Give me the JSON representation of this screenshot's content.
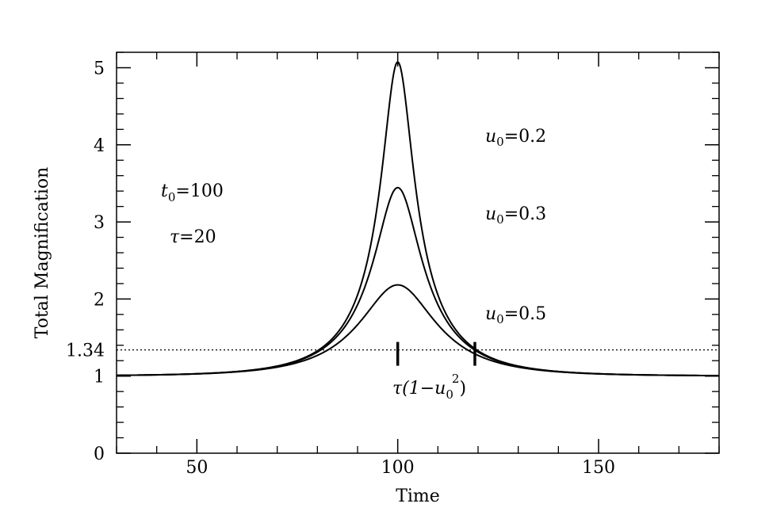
{
  "chart_data": {
    "type": "line",
    "xlabel": "Time",
    "ylabel": "Total Magnification",
    "xlim": [
      30,
      180
    ],
    "ylim": [
      0,
      5.2
    ],
    "x_ticks": [
      50,
      100,
      150
    ],
    "x_tick_labels": [
      "50",
      "100",
      "150"
    ],
    "y_ticks": [
      0,
      1,
      2,
      3,
      4,
      5
    ],
    "y_tick_labels": [
      "0",
      "1",
      "2",
      "3",
      "4",
      "5"
    ],
    "x_minor_step": 10,
    "y_minor_step": 0.2,
    "grid": false,
    "model": "point-lens microlensing: A(u) = (u^2+2)/(u*sqrt(u^2+4)), u = sqrt(u0^2 + ((t - t0)/tau)^2)",
    "t0": 100,
    "tau": 20,
    "series": [
      {
        "name": "u0=0.2",
        "u0": 0.2,
        "peak": 5.07
      },
      {
        "name": "u0=0.3",
        "u0": 0.3,
        "peak": 3.44
      },
      {
        "name": "u0=0.5",
        "u0": 0.5,
        "peak": 2.18
      }
    ],
    "threshold": {
      "y": 1.34,
      "label": "1.34",
      "style": "dotted"
    },
    "markers": [
      {
        "x": 100,
        "y": 1.34
      },
      {
        "x": 119.2,
        "y": 1.34
      }
    ],
    "annotations": {
      "t0": {
        "prefix": "t",
        "sub": "0",
        "suffix": "=100"
      },
      "tau": {
        "prefix": "τ",
        "suffix": "=20"
      },
      "u02": {
        "prefix": "u",
        "sub": "0",
        "suffix": "=0.2"
      },
      "u03": {
        "prefix": "u",
        "sub": "0",
        "suffix": "=0.3"
      },
      "u05": {
        "prefix": "u",
        "sub": "0",
        "suffix": "=0.5"
      },
      "width": {
        "prefix": "τ(1−u",
        "sub": "0",
        "sup": "2",
        "suffix": ")"
      }
    }
  }
}
